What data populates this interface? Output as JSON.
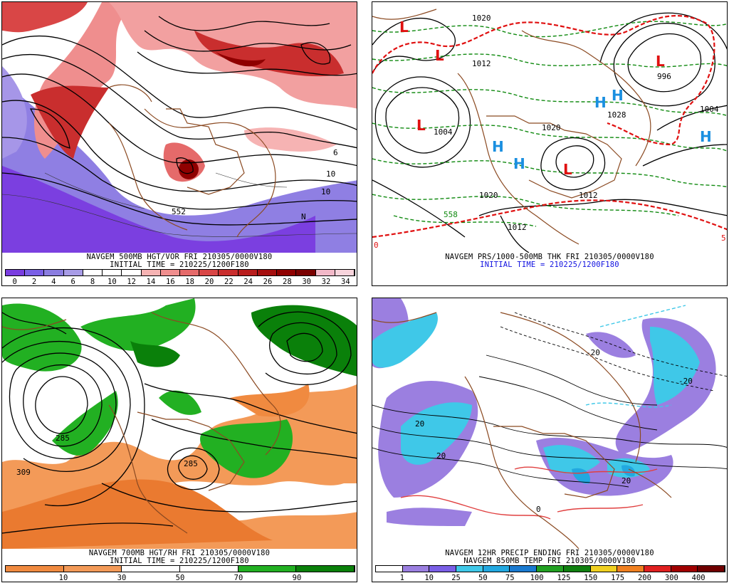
{
  "panels": [
    {
      "id": "p1",
      "caption": "NAVGEM 500MB HGT/VOR FRI 210305/0000V180",
      "initial": "INITIAL TIME = 210225/1200F180",
      "ticks": [
        "0",
        "2",
        "4",
        "6",
        "8",
        "10",
        "12",
        "14",
        "16",
        "18",
        "20",
        "22",
        "24",
        "26",
        "28",
        "30",
        "32",
        "34"
      ],
      "colors": [
        "#7a3de0",
        "#7a5fe6",
        "#8b7de0",
        "#a89ce6",
        "#ffffff",
        "#ffffff",
        "#ffffff",
        "#f6b3b3",
        "#ef8e8e",
        "#e56a6a",
        "#d94646",
        "#c92e2e",
        "#b81d1d",
        "#a50f0f",
        "#8f0000",
        "#7a0000",
        "#f2b8c8",
        "#f8d4dc"
      ],
      "labels": [
        "552",
        "6",
        "10",
        "10",
        "N"
      ]
    },
    {
      "id": "p2",
      "caption": "NAVGEM PRS/1000-500MB THK FRI 210305/0000V180",
      "initial": "INITIAL TIME = 210225/1200F180",
      "labels": [
        "1020",
        "1012",
        "1004",
        "1020",
        "1028",
        "996",
        "1004",
        "1012",
        "558",
        "1012",
        "1020",
        "5",
        "0"
      ],
      "centers": [
        {
          "t": "L",
          "c": "#e01010"
        },
        {
          "t": "L",
          "c": "#e01010"
        },
        {
          "t": "L",
          "c": "#e01010"
        },
        {
          "t": "L",
          "c": "#e01010"
        },
        {
          "t": "L",
          "c": "#e01010"
        },
        {
          "t": "H",
          "c": "#1a8fe0"
        },
        {
          "t": "H",
          "c": "#1a8fe0"
        },
        {
          "t": "H",
          "c": "#1a8fe0"
        },
        {
          "t": "H",
          "c": "#1a8fe0"
        },
        {
          "t": "H",
          "c": "#1a8fe0"
        }
      ]
    },
    {
      "id": "p3",
      "caption": "NAVGEM 700MB HGT/RH FRI 210305/0000V180",
      "initial": "INITIAL TIME = 210225/1200F180",
      "ticks": [
        "10",
        "30",
        "50",
        "70",
        "90"
      ],
      "colors": [
        "#f08a40",
        "#f39a58",
        "#ffffff",
        "#ffffff",
        "#22b022",
        "#0a800a"
      ],
      "labels": [
        "285",
        "309",
        "285"
      ]
    },
    {
      "id": "p4",
      "caption": "NAVGEM 12HR PRECIP ENDING FRI 210305/0000V180",
      "initial": "NAVGEM 850MB TEMP FRI 210305/0000V180",
      "ticks": [
        "1",
        "10",
        "25",
        "50",
        "75",
        "100",
        "125",
        "150",
        "175",
        "200",
        "300",
        "400"
      ],
      "colors": [
        "#ffffff",
        "#9b7fe0",
        "#7a5fe6",
        "#3fc8e8",
        "#22a8e0",
        "#1a7ad0",
        "#22a022",
        "#108010",
        "#f0d020",
        "#f08020",
        "#e02020",
        "#a00000",
        "#700000"
      ],
      "labels": [
        "20",
        "20",
        "20",
        "0",
        "-20",
        "-20"
      ]
    }
  ]
}
